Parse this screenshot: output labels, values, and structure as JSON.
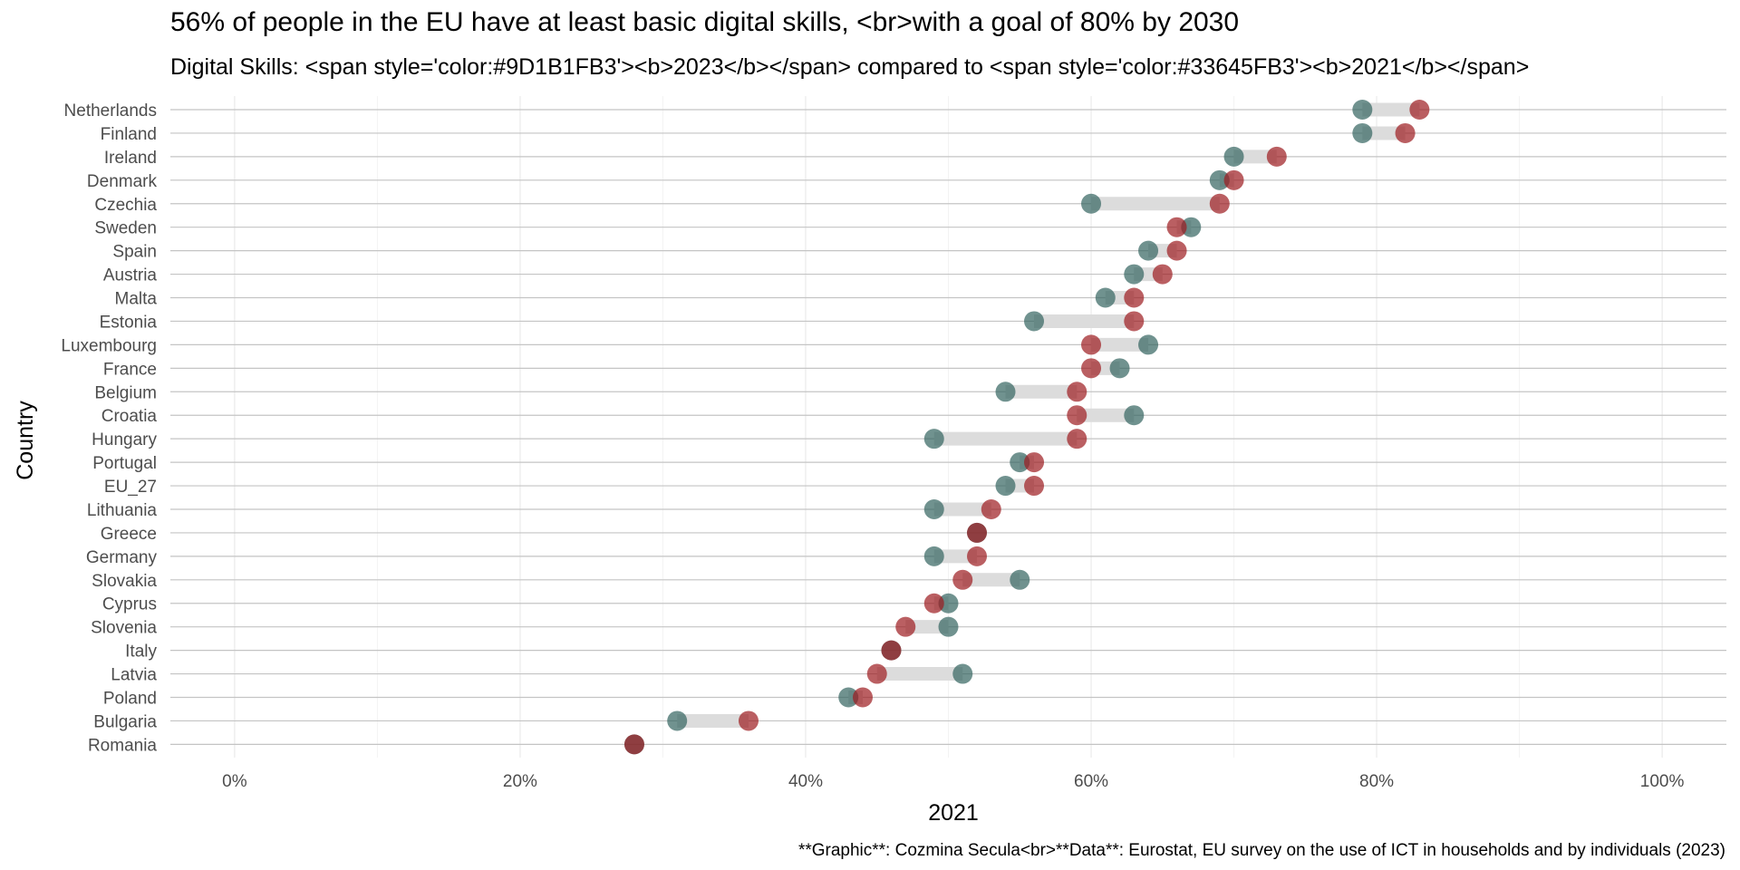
{
  "chart_data": {
    "type": "dumbbell",
    "title": "56% of people in the EU have at least basic digital skills, <br>with a goal of 80% by 2030",
    "subtitle": "Digital Skills: <span style='color:#9D1B1FB3'><b>2023</b></span> compared to <span style='color:#33645FB3'><b>2021</b></span>",
    "caption": "**Graphic**: Cozmina Secula<br>**Data**: Eurostat, EU survey on the use of ICT in households and by individuals (2023)",
    "xlabel": "2021",
    "ylabel": "Country",
    "xlim": [
      -0.045,
      1.045
    ],
    "x_ticks": [
      0,
      0.2,
      0.4,
      0.6,
      0.8,
      1.0
    ],
    "x_tick_labels": [
      "0%",
      "20%",
      "40%",
      "60%",
      "80%",
      "100%"
    ],
    "grid": true,
    "series": [
      {
        "name": "2021",
        "color": "#33645FB3"
      },
      {
        "name": "2023",
        "color": "#9D1B1FB3"
      }
    ],
    "rows": [
      {
        "country": "Netherlands",
        "v2021": 0.79,
        "v2023": 0.83
      },
      {
        "country": "Finland",
        "v2021": 0.79,
        "v2023": 0.82
      },
      {
        "country": "Ireland",
        "v2021": 0.7,
        "v2023": 0.73
      },
      {
        "country": "Denmark",
        "v2021": 0.69,
        "v2023": 0.7
      },
      {
        "country": "Czechia",
        "v2021": 0.6,
        "v2023": 0.69
      },
      {
        "country": "Sweden",
        "v2021": 0.67,
        "v2023": 0.66
      },
      {
        "country": "Spain",
        "v2021": 0.64,
        "v2023": 0.66
      },
      {
        "country": "Austria",
        "v2021": 0.63,
        "v2023": 0.65
      },
      {
        "country": "Malta",
        "v2021": 0.61,
        "v2023": 0.63
      },
      {
        "country": "Estonia",
        "v2021": 0.56,
        "v2023": 0.63
      },
      {
        "country": "Luxembourg",
        "v2021": 0.64,
        "v2023": 0.6
      },
      {
        "country": "France",
        "v2021": 0.62,
        "v2023": 0.6
      },
      {
        "country": "Belgium",
        "v2021": 0.54,
        "v2023": 0.59
      },
      {
        "country": "Croatia",
        "v2021": 0.63,
        "v2023": 0.59
      },
      {
        "country": "Hungary",
        "v2021": 0.49,
        "v2023": 0.59
      },
      {
        "country": "Portugal",
        "v2021": 0.55,
        "v2023": 0.56
      },
      {
        "country": "EU_27",
        "v2021": 0.54,
        "v2023": 0.56
      },
      {
        "country": "Lithuania",
        "v2021": 0.49,
        "v2023": 0.53
      },
      {
        "country": "Greece",
        "v2021": 0.52,
        "v2023": 0.52
      },
      {
        "country": "Germany",
        "v2021": 0.49,
        "v2023": 0.52
      },
      {
        "country": "Slovakia",
        "v2021": 0.55,
        "v2023": 0.51
      },
      {
        "country": "Cyprus",
        "v2021": 0.5,
        "v2023": 0.49
      },
      {
        "country": "Slovenia",
        "v2021": 0.5,
        "v2023": 0.47
      },
      {
        "country": "Italy",
        "v2021": 0.46,
        "v2023": 0.46
      },
      {
        "country": "Latvia",
        "v2021": 0.51,
        "v2023": 0.45
      },
      {
        "country": "Poland",
        "v2021": 0.43,
        "v2023": 0.44
      },
      {
        "country": "Bulgaria",
        "v2021": 0.31,
        "v2023": 0.36
      },
      {
        "country": "Romania",
        "v2021": 0.28,
        "v2023": 0.28
      }
    ]
  }
}
